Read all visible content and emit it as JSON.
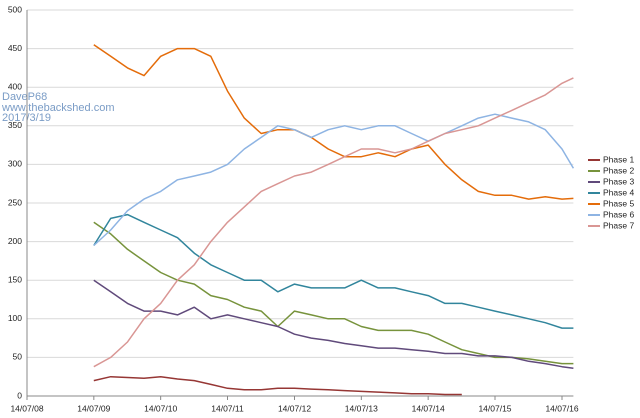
{
  "chart_data": {
    "type": "line",
    "annotations": [
      "DaveP68",
      "www.thebackshed.com",
      "2017/3/19"
    ],
    "x": [
      "14/07/09",
      "14/10/09",
      "14/01/10",
      "14/04/10",
      "14/07/10",
      "14/10/10",
      "14/01/11",
      "14/04/11",
      "14/07/11",
      "14/10/11",
      "14/01/12",
      "14/04/12",
      "14/07/12",
      "14/10/12",
      "14/01/13",
      "14/04/13",
      "14/07/13",
      "14/10/13",
      "14/01/14",
      "14/04/14",
      "14/07/14",
      "14/10/14",
      "14/01/15",
      "14/04/15",
      "14/07/15",
      "14/10/15",
      "14/01/16",
      "14/04/16",
      "14/07/16",
      "14/09/16"
    ],
    "series": [
      {
        "name": "Phase 1",
        "color": "#963634",
        "values": [
          20,
          25,
          24,
          23,
          25,
          22,
          20,
          15,
          10,
          8,
          8,
          10,
          10,
          9,
          8,
          7,
          6,
          5,
          4,
          3,
          3,
          2,
          2,
          null,
          null,
          null,
          null,
          null,
          null,
          null
        ]
      },
      {
        "name": "Phase 2",
        "color": "#77933c",
        "values": [
          225,
          210,
          190,
          175,
          160,
          150,
          145,
          130,
          125,
          115,
          110,
          90,
          110,
          105,
          100,
          100,
          90,
          85,
          85,
          85,
          80,
          70,
          60,
          55,
          50,
          50,
          48,
          45,
          42,
          42
        ]
      },
      {
        "name": "Phase 3",
        "color": "#604a7b",
        "values": [
          150,
          135,
          120,
          110,
          110,
          105,
          115,
          100,
          105,
          100,
          95,
          90,
          80,
          75,
          72,
          68,
          65,
          62,
          62,
          60,
          58,
          55,
          55,
          52,
          52,
          50,
          45,
          42,
          38,
          36
        ]
      },
      {
        "name": "Phase 4",
        "color": "#31859c",
        "values": [
          195,
          230,
          235,
          225,
          215,
          205,
          185,
          170,
          160,
          150,
          150,
          135,
          145,
          140,
          140,
          140,
          150,
          140,
          140,
          135,
          130,
          120,
          120,
          115,
          110,
          105,
          100,
          95,
          88,
          88
        ]
      },
      {
        "name": "Phase 5",
        "color": "#e46c0a",
        "values": [
          455,
          440,
          425,
          415,
          440,
          450,
          450,
          440,
          395,
          360,
          340,
          345,
          345,
          335,
          320,
          310,
          310,
          315,
          310,
          320,
          325,
          300,
          280,
          265,
          260,
          260,
          255,
          258,
          255,
          256
        ]
      },
      {
        "name": "Phase 6",
        "color": "#8eb4e3",
        "values": [
          195,
          215,
          240,
          255,
          265,
          280,
          285,
          290,
          300,
          320,
          335,
          350,
          345,
          335,
          345,
          350,
          345,
          350,
          350,
          340,
          330,
          340,
          350,
          360,
          365,
          360,
          355,
          345,
          320,
          295
        ]
      },
      {
        "name": "Phase 7",
        "color": "#d99694",
        "values": [
          38,
          50,
          70,
          100,
          120,
          150,
          170,
          200,
          225,
          245,
          265,
          275,
          285,
          290,
          300,
          310,
          320,
          320,
          315,
          320,
          330,
          340,
          345,
          350,
          360,
          370,
          380,
          390,
          405,
          412
        ]
      }
    ],
    "xlim": [
      "14/07/08",
      "14/09/16"
    ],
    "xticks": [
      "14/07/08",
      "14/07/09",
      "14/07/10",
      "14/07/11",
      "14/07/12",
      "14/07/13",
      "14/07/14",
      "14/07/15",
      "14/07/16"
    ],
    "ylim": [
      0,
      500
    ],
    "yticks": [
      0,
      50,
      100,
      150,
      200,
      250,
      300,
      350,
      400,
      450,
      500
    ],
    "grid": true,
    "legend": "right"
  }
}
